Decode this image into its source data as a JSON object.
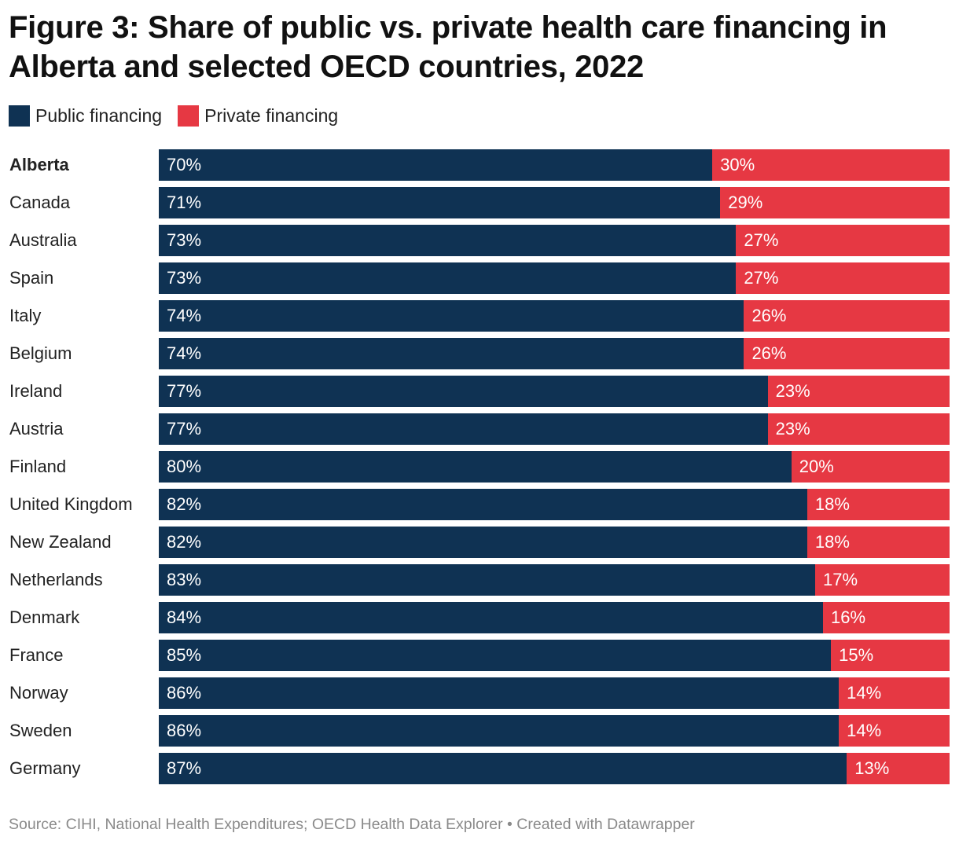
{
  "colors": {
    "public": "#0f3253",
    "private": "#e63843"
  },
  "chart_data": {
    "type": "bar",
    "stacked": true,
    "orientation": "horizontal",
    "title": "Figure 3: Share of public vs. private health care financing in Alberta and selected OECD countries, 2022",
    "legend_position": "top-left",
    "categories": [
      "Alberta",
      "Canada",
      "Australia",
      "Spain",
      "Italy",
      "Belgium",
      "Ireland",
      "Austria",
      "Finland",
      "United Kingdom",
      "New Zealand",
      "Netherlands",
      "Denmark",
      "France",
      "Norway",
      "Sweden",
      "Germany"
    ],
    "highlighted_category": "Alberta",
    "series": [
      {
        "name": "Public financing",
        "values": [
          70,
          71,
          73,
          73,
          74,
          74,
          77,
          77,
          80,
          82,
          82,
          83,
          84,
          85,
          86,
          86,
          87
        ]
      },
      {
        "name": "Private financing",
        "values": [
          30,
          29,
          27,
          27,
          26,
          26,
          23,
          23,
          20,
          18,
          18,
          17,
          16,
          15,
          14,
          14,
          13
        ]
      }
    ],
    "value_suffix": "%",
    "xlim": [
      0,
      100
    ]
  },
  "source": "Source: CIHI, National Health Expenditures; OECD Health Data Explorer • Created with Datawrapper"
}
